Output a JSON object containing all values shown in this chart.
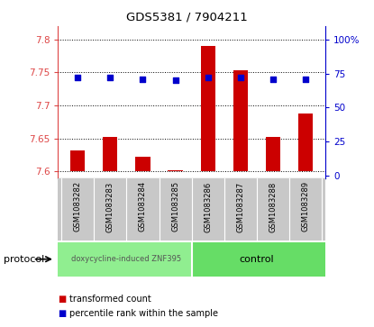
{
  "title": "GDS5381 / 7904211",
  "samples": [
    "GSM1083282",
    "GSM1083283",
    "GSM1083284",
    "GSM1083285",
    "GSM1083286",
    "GSM1083287",
    "GSM1083288",
    "GSM1083289"
  ],
  "transformed_counts": [
    7.632,
    7.653,
    7.622,
    7.602,
    7.79,
    7.753,
    7.652,
    7.688
  ],
  "percentile_ranks": [
    72,
    72,
    71,
    70,
    72,
    72,
    71,
    71
  ],
  "bar_bottom": 7.6,
  "ylim_left": [
    7.59,
    7.82
  ],
  "ylim_right": [
    -2.2,
    110
  ],
  "yticks_left": [
    7.6,
    7.65,
    7.7,
    7.75,
    7.8
  ],
  "yticks_right": [
    0,
    25,
    50,
    75,
    100
  ],
  "ytick_labels_right": [
    "0",
    "25",
    "50",
    "75",
    "100%"
  ],
  "bar_color": "#cc0000",
  "dot_color": "#0000cc",
  "protocol_groups": [
    {
      "label": "doxycycline-induced ZNF395",
      "start": 0,
      "end": 4,
      "color": "#90EE90"
    },
    {
      "label": "control",
      "start": 4,
      "end": 8,
      "color": "#66DD66"
    }
  ],
  "legend_items": [
    {
      "color": "#cc0000",
      "label": "transformed count"
    },
    {
      "color": "#0000cc",
      "label": "percentile rank within the sample"
    }
  ],
  "protocol_label": "protocol",
  "left_axis_color": "#dd4444",
  "right_axis_color": "#0000cc",
  "tick_area_bg": "#c8c8c8"
}
